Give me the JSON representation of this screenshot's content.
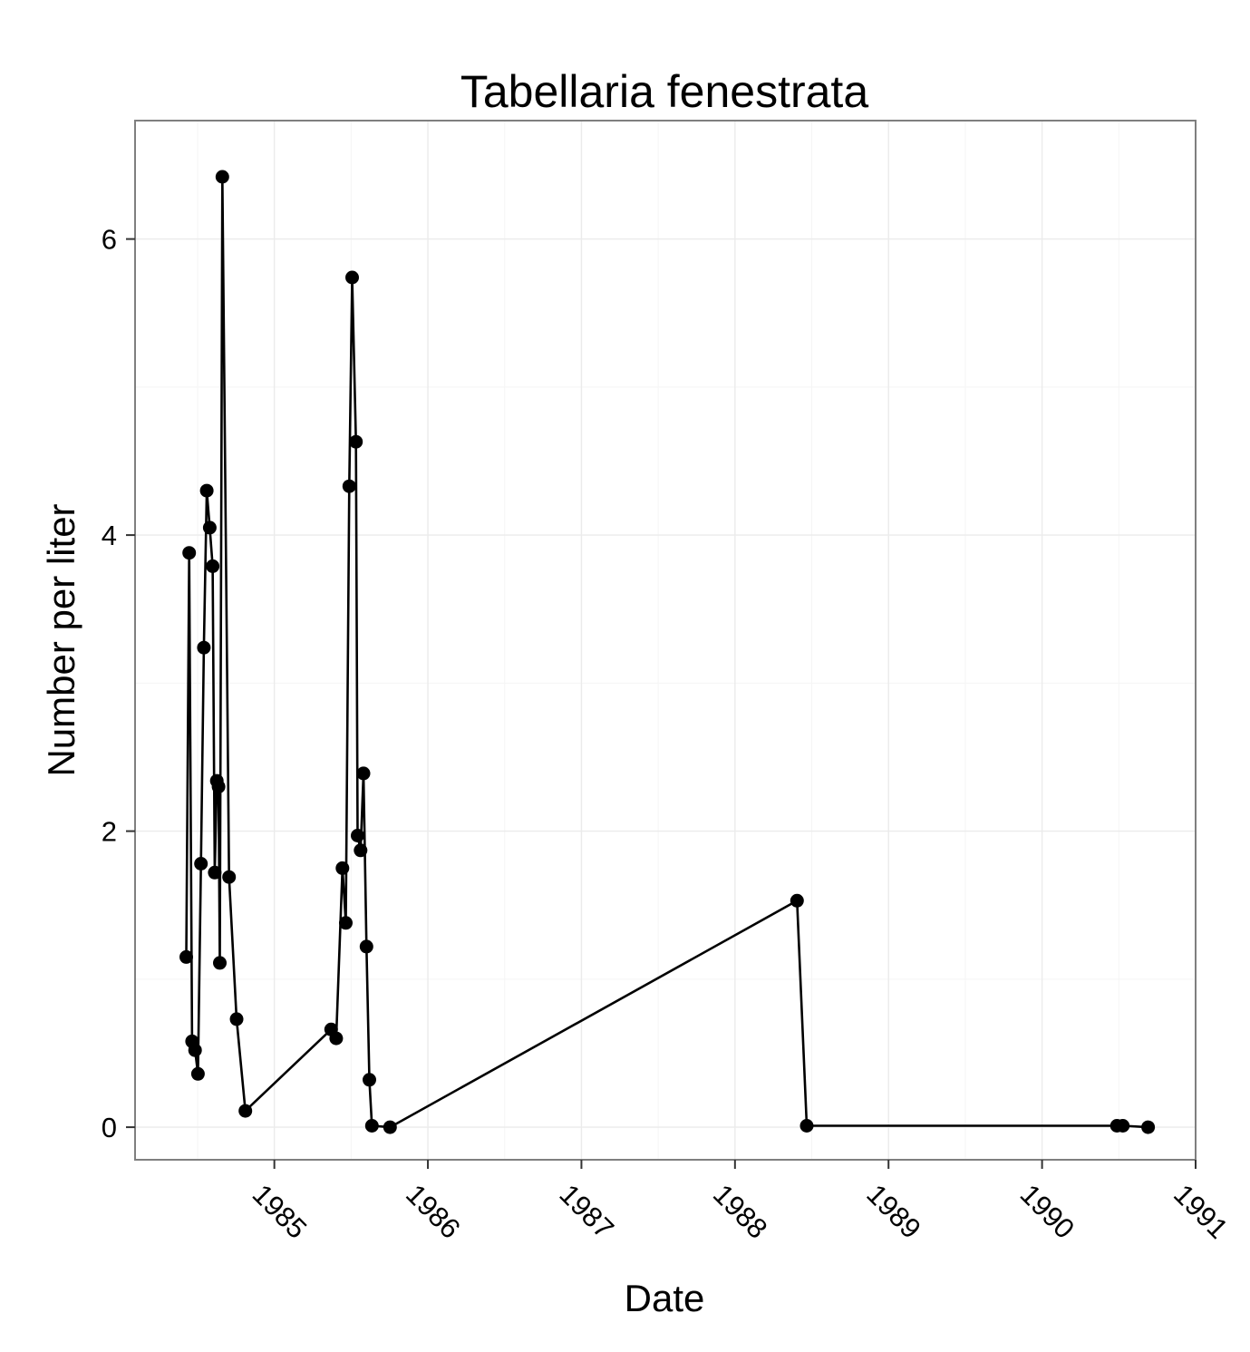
{
  "chart_data": {
    "type": "line",
    "title": "Tabellaria fenestrata",
    "xlabel": "Date",
    "ylabel": "Number per liter",
    "x_ticks": [
      "1985",
      "1986",
      "1987",
      "1988",
      "1989",
      "1990",
      "1991"
    ],
    "y_ticks": [
      "0",
      "2",
      "4",
      "6"
    ],
    "xlim": [
      "1984-02-04",
      "1991-01-01"
    ],
    "ylim": [
      -0.22,
      6.8
    ],
    "grid": true,
    "series": [
      {
        "color": "#000000",
        "points": [
          [
            "1984-06-05",
            1.15
          ],
          [
            "1984-06-12",
            3.88
          ],
          [
            "1984-06-19",
            0.58
          ],
          [
            "1984-06-26",
            0.52
          ],
          [
            "1984-07-03",
            0.36
          ],
          [
            "1984-07-10",
            1.78
          ],
          [
            "1984-07-17",
            3.24
          ],
          [
            "1984-07-24",
            4.3
          ],
          [
            "1984-07-31",
            4.05
          ],
          [
            "1984-08-07",
            3.79
          ],
          [
            "1984-08-12",
            1.72
          ],
          [
            "1984-08-17",
            2.34
          ],
          [
            "1984-08-21",
            2.3
          ],
          [
            "1984-08-24",
            1.11
          ],
          [
            "1984-08-30",
            6.42
          ],
          [
            "1984-09-15",
            1.69
          ],
          [
            "1984-10-03",
            0.73
          ],
          [
            "1984-10-24",
            0.11
          ],
          [
            "1985-05-16",
            0.66
          ],
          [
            "1985-05-28",
            0.6
          ],
          [
            "1985-06-12",
            1.75
          ],
          [
            "1985-06-20",
            1.38
          ],
          [
            "1985-06-28",
            4.33
          ],
          [
            "1985-07-05",
            5.74
          ],
          [
            "1985-07-14",
            4.63
          ],
          [
            "1985-07-18",
            1.97
          ],
          [
            "1985-07-25",
            1.87
          ],
          [
            "1985-08-01",
            2.39
          ],
          [
            "1985-08-08",
            1.22
          ],
          [
            "1985-08-15",
            0.32
          ],
          [
            "1985-08-21",
            0.01
          ],
          [
            "1985-10-03",
            0.0
          ],
          [
            "1988-05-28",
            1.53
          ],
          [
            "1988-06-20",
            0.01
          ],
          [
            "1990-06-28",
            0.01
          ],
          [
            "1990-07-12",
            0.01
          ],
          [
            "1990-09-10",
            0.0
          ]
        ]
      }
    ]
  }
}
